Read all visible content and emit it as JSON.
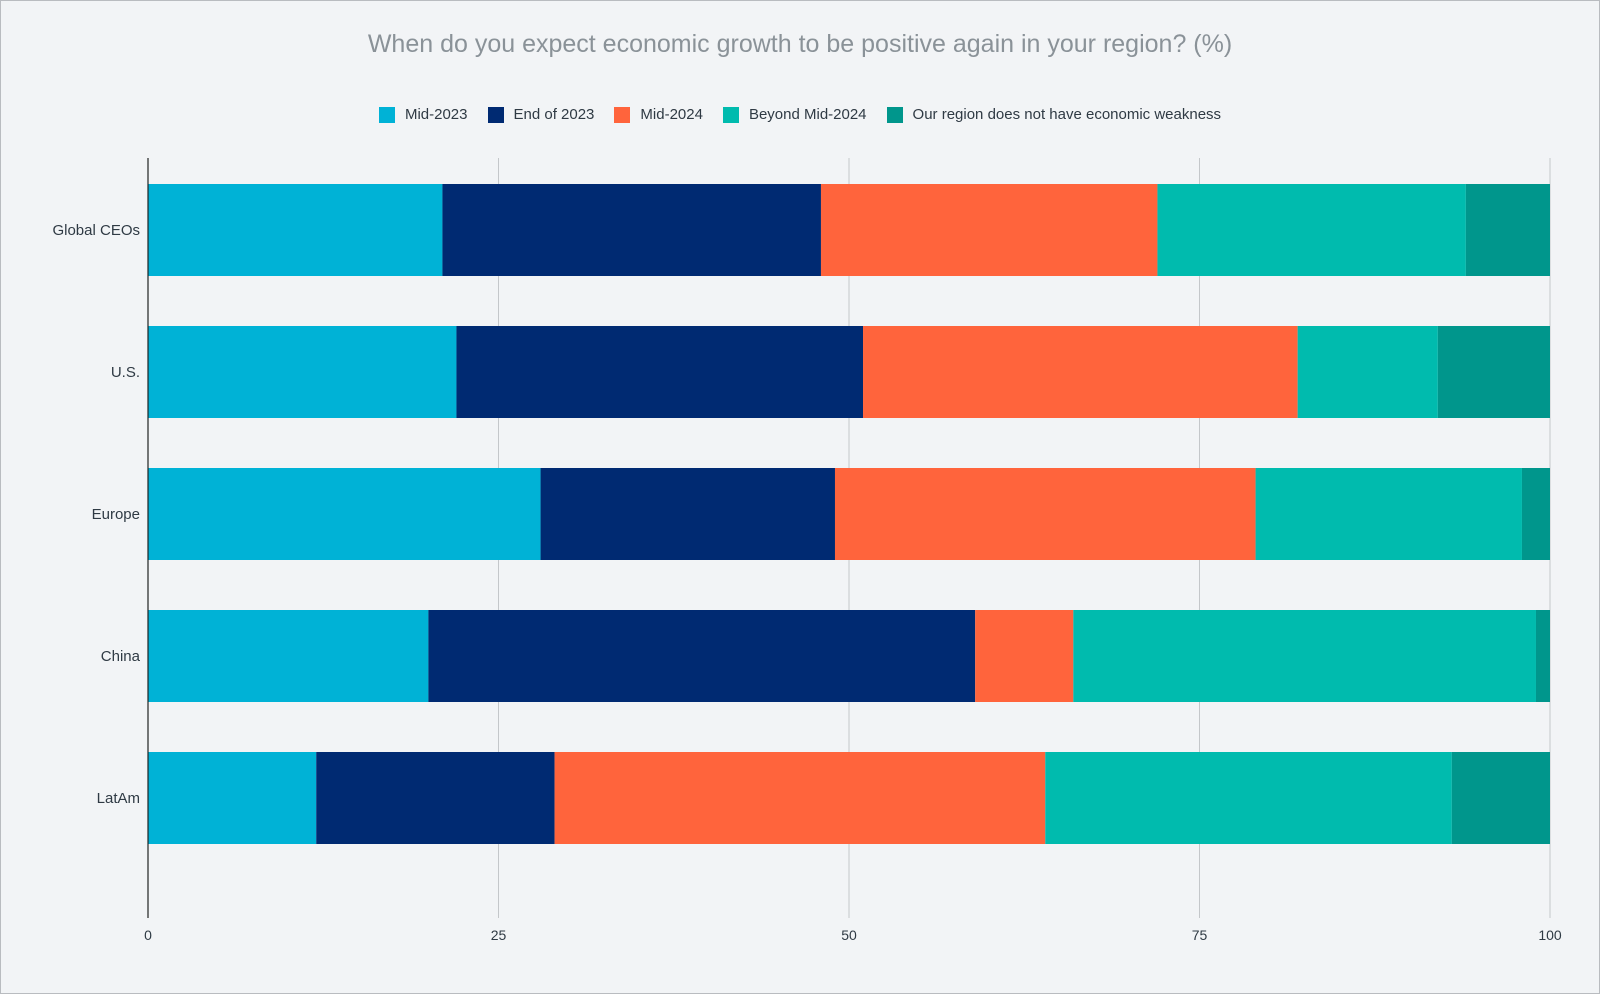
{
  "chart_data": {
    "type": "bar",
    "orientation": "horizontal",
    "stacked": true,
    "title": "When do you expect economic growth to be positive again in your region? (%)",
    "xlabel": "",
    "ylabel": "",
    "xlim": [
      0,
      100
    ],
    "ticks": [
      "0",
      "25",
      "50",
      "75",
      "100"
    ],
    "tick_values": [
      0,
      25,
      50,
      75,
      100
    ],
    "grid": true,
    "legend_position": "top-center",
    "categories": [
      "Global CEOs",
      "U.S.",
      "Europe",
      "China",
      "LatAm"
    ],
    "series": [
      {
        "name": "Mid-2023",
        "color": "#00b2d6",
        "values": [
          21,
          22,
          28,
          20,
          12
        ]
      },
      {
        "name": "End of 2023",
        "color": "#002a72",
        "values": [
          27,
          29,
          21,
          39,
          17
        ]
      },
      {
        "name": "Mid-2024",
        "color": "#ff643c",
        "values": [
          24,
          31,
          30,
          7,
          35
        ]
      },
      {
        "name": "Beyond Mid-2024",
        "color": "#00bbae",
        "values": [
          22,
          10,
          19,
          33,
          29
        ]
      },
      {
        "name": "Our region does not have economic weakness",
        "color": "#00968c",
        "values": [
          6,
          8,
          2,
          1,
          7
        ]
      }
    ]
  }
}
